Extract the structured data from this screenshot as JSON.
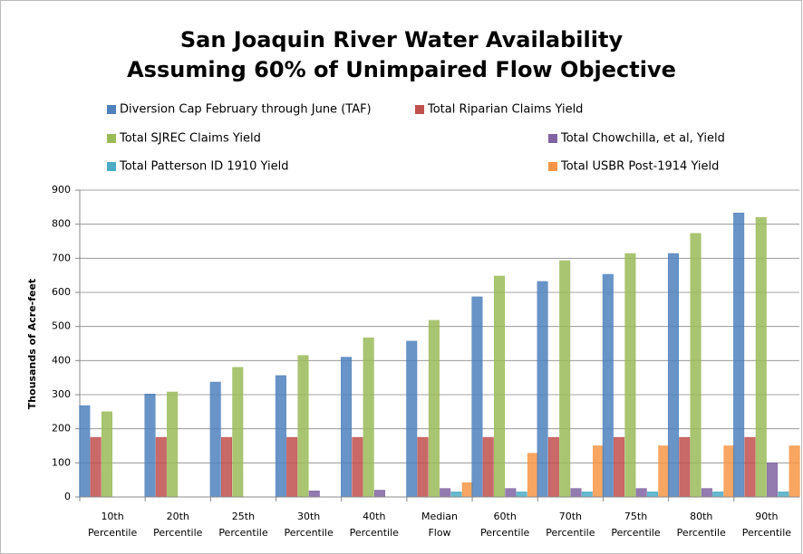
{
  "chart_data": {
    "type": "bar",
    "title": [
      "San Joaquin River Water Availability",
      "Assuming 60% of Unimpaired Flow Objective"
    ],
    "y_label": "Thousands of Acre-feet",
    "categories": [
      "10th Percentile",
      "20th Percentile",
      "25th Percentile",
      "30th Percentile",
      "40th Percentile",
      "Median Flow",
      "60th Percentile",
      "70th Percentile",
      "75th Percentile",
      "80th Percentile",
      "90th Percentile"
    ],
    "series": [
      {
        "name": "Diversion Cap February through June (TAF)",
        "color": "#4f81bd",
        "values": [
          268,
          302,
          337,
          356,
          410,
          457,
          587,
          632,
          653,
          714,
          833
        ]
      },
      {
        "name": "Total Riparian Claims Yield",
        "color": "#c0504d",
        "values": [
          175,
          175,
          175,
          175,
          175,
          175,
          175,
          175,
          175,
          175,
          175
        ]
      },
      {
        "name": "Total SJREC Claims Yield",
        "color": "#9bbb59",
        "values": [
          250,
          308,
          380,
          415,
          467,
          518,
          648,
          693,
          714,
          773,
          820
        ]
      },
      {
        "name": "Total Chowchilla, et al, Yield",
        "color": "#8064a2",
        "values": [
          0,
          0,
          0,
          18,
          20,
          25,
          25,
          25,
          25,
          25,
          100
        ]
      },
      {
        "name": "Total Patterson ID 1910 Yield",
        "color": "#4bacc6",
        "values": [
          0,
          0,
          0,
          0,
          0,
          15,
          15,
          15,
          15,
          15,
          15
        ]
      },
      {
        "name": "Total USBR Post-1914 Yield",
        "color": "#f79646",
        "values": [
          0,
          0,
          0,
          0,
          0,
          42,
          128,
          150,
          150,
          150,
          150
        ]
      }
    ],
    "ylim": [
      0,
      900
    ],
    "yticks": [
      0,
      100,
      200,
      300,
      400,
      500,
      600,
      700,
      800,
      900
    ],
    "grid": true
  }
}
